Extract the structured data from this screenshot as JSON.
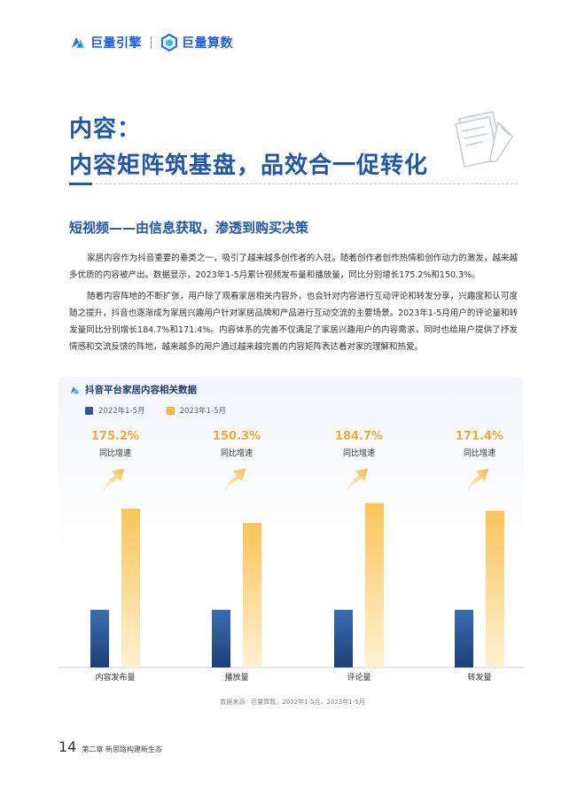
{
  "header": {
    "logo1_text": "巨量引擎",
    "logo2_text": "巨量算数"
  },
  "title": {
    "line1": "内容：",
    "line2": "内容矩阵筑基盘，品效合一促转化"
  },
  "section": {
    "heading": "短视频——由信息获取，渗透到购买决策",
    "paragraph1": "家居内容作为抖音重要的垂类之一，吸引了越来越多创作者的入驻。随着创作者创作热情和创作动力的激发，越来越多优质的内容被产出。数据显示，2023年1-5月累计视频发布量和播放量，同比分别增长175.2%和150.3%。",
    "paragraph2": "随着内容阵地的不断扩张，用户除了观看家居相关内容外，也会针对内容进行互动评论和转发分享，兴趣度和认可度随之提升，抖音也逐渐成为家居兴趣用户针对家居品牌和产品进行互动交流的主要场景。2023年1-5月用户的评论量和转发量同比分别增长184.7%和171.4%。内容体系的完善不仅满足了家居兴趣用户的内容需求，同时也给用户提供了抒发情感和交流反馈的阵地，越来越多的用户通过越来越完善的内容矩阵表达着对家的理解和热爱。"
  },
  "chart_data": {
    "type": "bar",
    "title": "抖音平台家居内容相关数据",
    "categories": [
      "内容发布量",
      "播放量",
      "评论量",
      "转发量"
    ],
    "series": [
      {
        "name": "2022年1-5月",
        "color": "#2e5a9a",
        "values": [
          100,
          100,
          100,
          100
        ]
      },
      {
        "name": "2023年1-5月",
        "color": "#f6b843",
        "values": [
          275.2,
          250.3,
          284.7,
          271.4
        ]
      }
    ],
    "growth_labels": [
      "175.2%",
      "150.3%",
      "184.7%",
      "171.4%"
    ],
    "growth_caption": "同比增速",
    "source": "数据来源：巨量算数，2022年1-5月、2023年1-5月"
  },
  "footer": {
    "page_number": "14",
    "chapter": "第二章  新思路构建新生态"
  }
}
